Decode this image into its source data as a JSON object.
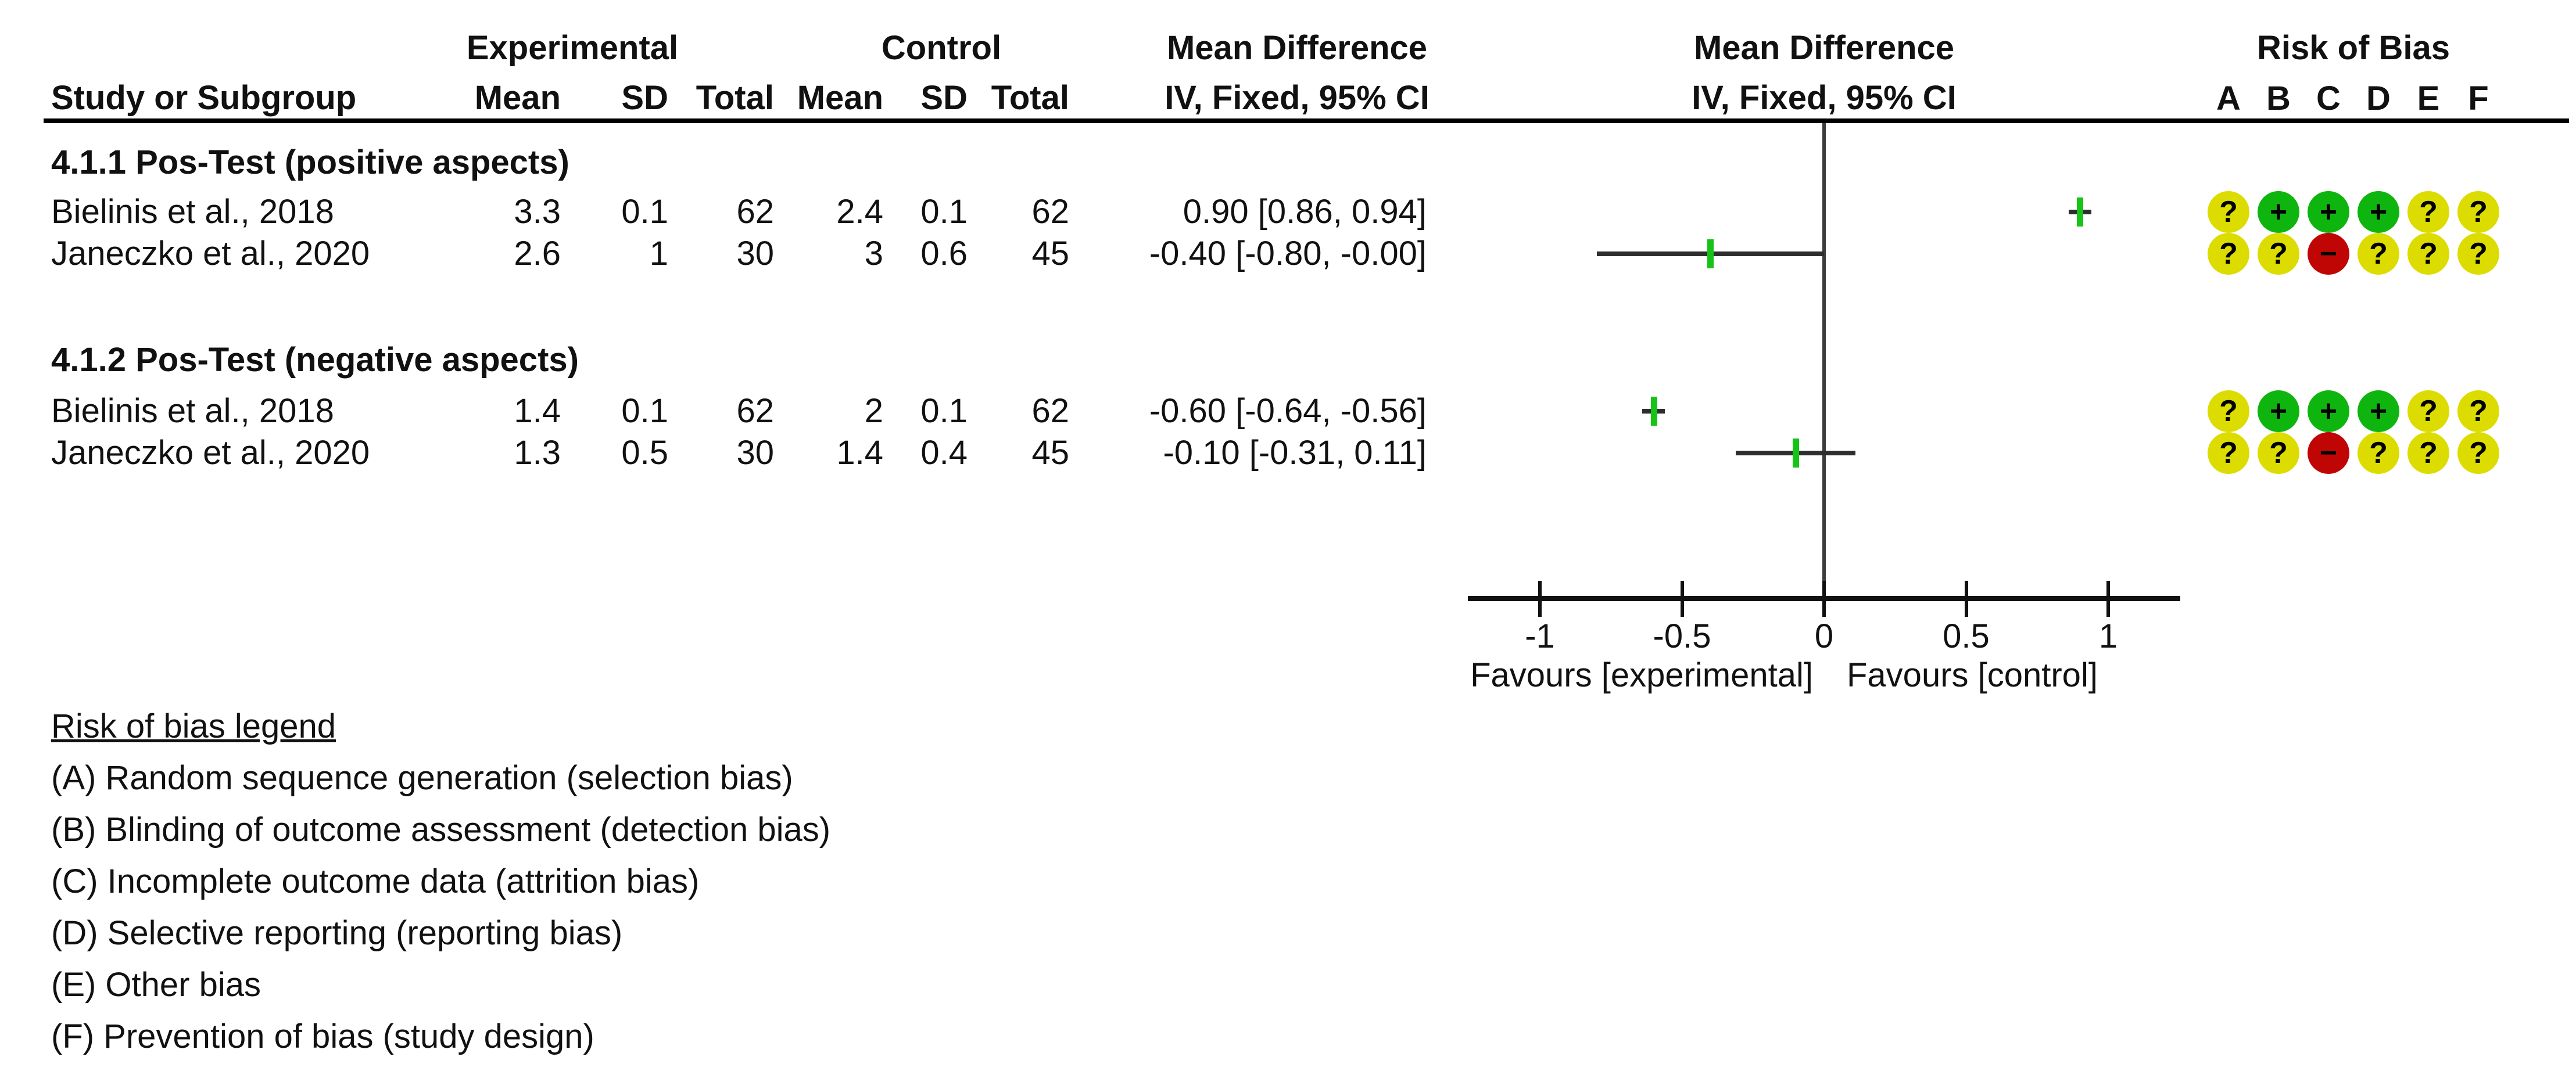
{
  "header": {
    "experimental": "Experimental",
    "control": "Control",
    "mean_difference_text": "Mean Difference",
    "mean_difference_plot": "Mean Difference",
    "risk_of_bias": "Risk of Bias",
    "study_col": "Study or Subgroup",
    "mean_col": "Mean",
    "sd_col": "SD",
    "total_col": "Total",
    "mean_col2": "Mean",
    "sd_col2": "SD",
    "total_col2": "Total",
    "iv_fixed_text": "IV, Fixed, 95% CI",
    "iv_fixed_plot": "IV, Fixed, 95% CI",
    "rob_letters": [
      "A",
      "B",
      "C",
      "D",
      "E",
      "F"
    ]
  },
  "chart_data": {
    "type": "forest",
    "effect_measure": "Mean Difference",
    "method": "IV, Fixed, 95% CI",
    "x_axis": {
      "range": [
        -1.25,
        1.25
      ],
      "ticks": [
        -1,
        -0.5,
        0,
        0.5,
        1
      ],
      "tick_labels": [
        "-1",
        "-0.5",
        "0",
        "0.5",
        "1"
      ],
      "favours_left": "Favours [experimental]",
      "favours_right": "Favours [control]"
    },
    "subgroups": [
      {
        "label": "4.1.1 Pos-Test (positive aspects)",
        "studies": [
          {
            "name": "Bielinis et al., 2018",
            "exp_mean": "3.3",
            "exp_sd": "0.1",
            "exp_total": "62",
            "ctl_mean": "2.4",
            "ctl_sd": "0.1",
            "ctl_total": "62",
            "md": 0.9,
            "ci_low": 0.86,
            "ci_high": 0.94,
            "ci_label": "0.90 [0.86, 0.94]",
            "risk_of_bias": [
              "unclear",
              "low",
              "low",
              "low",
              "unclear",
              "unclear"
            ]
          },
          {
            "name": "Janeczko et al., 2020",
            "exp_mean": "2.6",
            "exp_sd": "1",
            "exp_total": "30",
            "ctl_mean": "3",
            "ctl_sd": "0.6",
            "ctl_total": "45",
            "md": -0.4,
            "ci_low": -0.8,
            "ci_high": 0.0,
            "ci_label": "-0.40 [-0.80, -0.00]",
            "risk_of_bias": [
              "unclear",
              "unclear",
              "high",
              "unclear",
              "unclear",
              "unclear"
            ]
          }
        ]
      },
      {
        "label": "4.1.2 Pos-Test (negative aspects)",
        "studies": [
          {
            "name": "Bielinis et al., 2018",
            "exp_mean": "1.4",
            "exp_sd": "0.1",
            "exp_total": "62",
            "ctl_mean": "2",
            "ctl_sd": "0.1",
            "ctl_total": "62",
            "md": -0.6,
            "ci_low": -0.64,
            "ci_high": -0.56,
            "ci_label": "-0.60 [-0.64, -0.56]",
            "risk_of_bias": [
              "unclear",
              "low",
              "low",
              "low",
              "unclear",
              "unclear"
            ]
          },
          {
            "name": "Janeczko et al., 2020",
            "exp_mean": "1.3",
            "exp_sd": "0.5",
            "exp_total": "30",
            "ctl_mean": "1.4",
            "ctl_sd": "0.4",
            "ctl_total": "45",
            "md": -0.1,
            "ci_low": -0.31,
            "ci_high": 0.11,
            "ci_label": "-0.10 [-0.31, 0.11]",
            "risk_of_bias": [
              "unclear",
              "unclear",
              "high",
              "unclear",
              "unclear",
              "unclear"
            ]
          }
        ]
      }
    ]
  },
  "rob_legend": {
    "title": "Risk of bias legend",
    "items": [
      "(A) Random sequence generation (selection bias)",
      "(B) Blinding of outcome assessment (detection bias)",
      "(C) Incomplete outcome data (attrition bias)",
      "(D) Selective reporting (reporting bias)",
      "(E) Other bias",
      "(F) Prevention of bias (study design)"
    ]
  },
  "rob_symbols": {
    "unclear": "?",
    "low": "+",
    "high": "−"
  },
  "colors": {
    "circle_yellow": "#dcdc00",
    "circle_green": "#0fb50f",
    "circle_red": "#c00505",
    "marker_green": "#17c317",
    "ci_line": "#2e2e2e",
    "zero_line": "#3d3d3d",
    "axis": "#111111",
    "text": "#111111"
  }
}
